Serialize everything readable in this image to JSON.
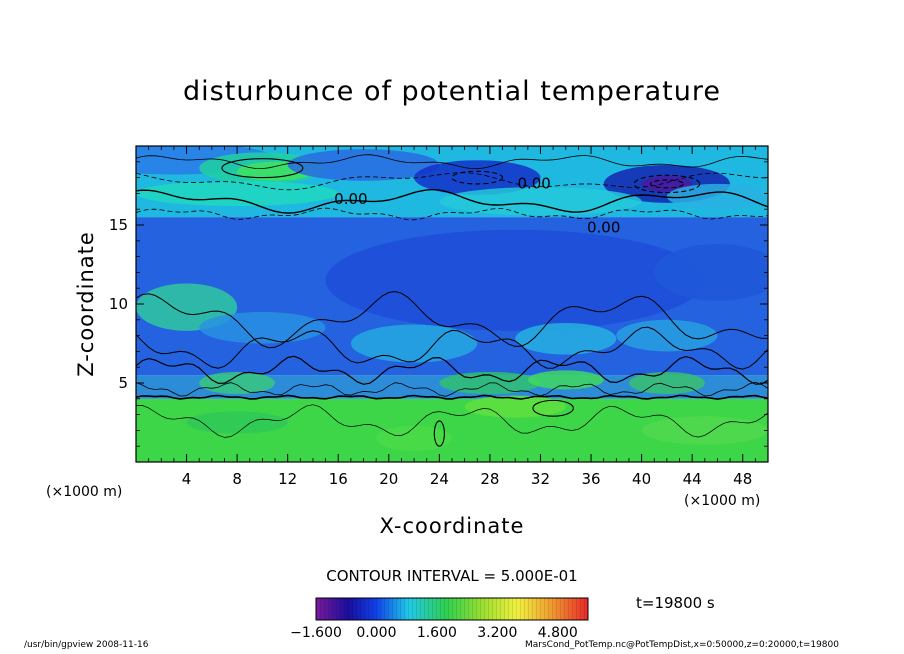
{
  "chart_data": {
    "type": "heatmap",
    "title": "disturbunce of potential temperature",
    "xlabel": "X-coordinate",
    "ylabel": "Z-coordinate",
    "x_unit": "(×1000 m)",
    "y_unit": "(×1000 m)",
    "xlim": [
      0,
      50
    ],
    "ylim": [
      0,
      20
    ],
    "x_ticks": [
      4,
      8,
      12,
      16,
      20,
      24,
      28,
      32,
      36,
      40,
      44,
      48
    ],
    "y_ticks": [
      5,
      10,
      15
    ],
    "contour_labels": [
      "0.00",
      "0.00",
      "0.00"
    ],
    "contour_interval_text": "CONTOUR INTERVAL = 5.000E-01",
    "colorbar": {
      "min": -1.6,
      "max": 5.6,
      "tick_labels": [
        "−1.600",
        "0.000",
        "1.600",
        "3.200",
        "4.800"
      ],
      "tick_values": [
        -1.6,
        0.0,
        1.6,
        3.2,
        4.8
      ]
    },
    "time_label": "t=19800 s",
    "footer_left": "/usr/bin/gpview   2008-11-16",
    "footer_right": "MarsCond_PotTemp.nc@PotTempDist,x=0:50000,z=0:20000,t=19800",
    "layers": [
      {
        "z_from": 0,
        "z_to": 4,
        "level": "green",
        "color": "#3cd648"
      },
      {
        "z_from": 4,
        "z_to": 5.5,
        "level": "mixed-low",
        "color": "#2c8cd8"
      },
      {
        "z_from": 5.5,
        "z_to": 15.5,
        "level": "slightly-negative",
        "color": "#2462e0"
      },
      {
        "z_from": 15.5,
        "z_to": 20,
        "level": "near-zero",
        "color": "#1eb8e0"
      }
    ]
  }
}
